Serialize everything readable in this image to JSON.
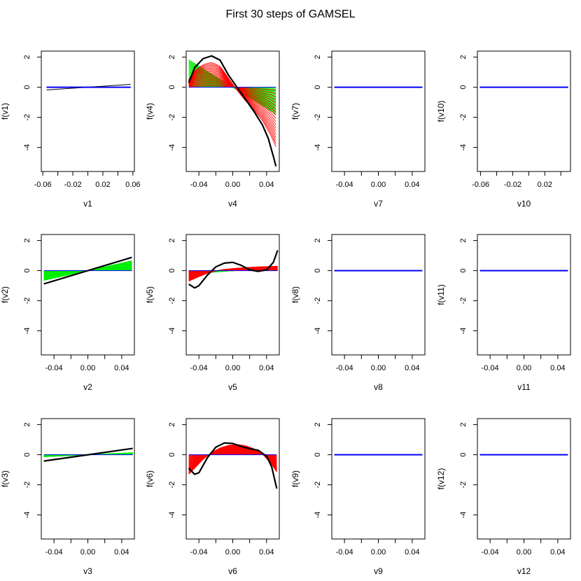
{
  "chart_data": {
    "type": "line",
    "title": "First 30 steps of GAMSEL",
    "steps": 30,
    "colors": {
      "truth": "#000000",
      "zero": "#0000ff",
      "linear": "#00ee00",
      "nonlinear": "#ff0000"
    },
    "ylim": [
      -5.6,
      2.4
    ],
    "yticks": [
      2,
      0,
      -2,
      -4
    ],
    "panels": [
      {
        "id": "v1",
        "xlabel": "v1",
        "ylabel": "f(v1)",
        "xlim": [
          -0.062,
          0.062
        ],
        "xticks": [
          -0.06,
          -0.04,
          -0.02,
          0.0,
          0.02,
          0.04,
          0.06
        ],
        "xtick_labels": [
          "-0.06",
          "-0.02",
          "0.02",
          "0.06"
        ],
        "xtick_label_values": [
          -0.06,
          -0.02,
          0.02,
          0.06
        ],
        "data_x": [
          -0.055,
          0.057
        ],
        "truth_points": [
          [
            -0.055,
            -0.18
          ],
          [
            0.057,
            0.19
          ]
        ],
        "linear_final_slope": 0,
        "nonlinear": null,
        "zero_only": true
      },
      {
        "id": "v4",
        "xlabel": "v4",
        "ylabel": "f(v4)",
        "xlim": [
          -0.055,
          0.055
        ],
        "xticks": [
          -0.04,
          -0.02,
          0.0,
          0.02,
          0.04
        ],
        "xtick_labels": [
          "-0.04",
          "0.00",
          "0.04"
        ],
        "xtick_label_values": [
          -0.04,
          0.0,
          0.04
        ],
        "data_x": [
          -0.052,
          0.051
        ],
        "truth_points": [
          [
            -0.052,
            0.3
          ],
          [
            -0.045,
            1.3
          ],
          [
            -0.035,
            1.9
          ],
          [
            -0.025,
            2.08
          ],
          [
            -0.015,
            1.8
          ],
          [
            -0.005,
            0.8
          ],
          [
            0.005,
            0.0
          ],
          [
            0.015,
            -0.8
          ],
          [
            0.025,
            -1.6
          ],
          [
            0.035,
            -2.5
          ],
          [
            0.042,
            -3.4
          ],
          [
            0.048,
            -4.6
          ],
          [
            0.051,
            -5.25
          ]
        ],
        "linear_final_slope": -35,
        "nonlinear": {
          "start_step": 12,
          "points": [
            [
              -0.052,
              0.5
            ],
            [
              -0.045,
              1.1
            ],
            [
              -0.035,
              1.5
            ],
            [
              -0.025,
              1.65
            ],
            [
              -0.015,
              1.4
            ],
            [
              -0.005,
              0.6
            ],
            [
              0.005,
              -0.2
            ],
            [
              0.015,
              -0.9
            ],
            [
              0.025,
              -1.5
            ],
            [
              0.035,
              -2.2
            ],
            [
              0.045,
              -3.2
            ],
            [
              0.051,
              -3.95
            ]
          ]
        },
        "zero_only": false
      },
      {
        "id": "v7",
        "xlabel": "v7",
        "ylabel": "f(v7)",
        "xlim": [
          -0.055,
          0.055
        ],
        "xticks": [
          -0.04,
          -0.02,
          0.0,
          0.02,
          0.04
        ],
        "xtick_labels": [
          "-0.04",
          "0.00",
          "0.04"
        ],
        "xtick_label_values": [
          -0.04,
          0.0,
          0.04
        ],
        "data_x": [
          -0.052,
          0.052
        ],
        "truth_points": [
          [
            -0.052,
            0
          ],
          [
            0.052,
            0
          ]
        ],
        "linear_final_slope": 0,
        "nonlinear": null,
        "zero_only": true
      },
      {
        "id": "v10",
        "xlabel": "v10",
        "ylabel": "f(v10)",
        "xlim": [
          -0.064,
          0.052
        ],
        "xticks": [
          -0.06,
          -0.04,
          -0.02,
          0.0,
          0.02,
          0.04
        ],
        "xtick_labels": [
          "-0.06",
          "-0.02",
          "0.02"
        ],
        "xtick_label_values": [
          -0.06,
          -0.02,
          0.02
        ],
        "data_x": [
          -0.061,
          0.049
        ],
        "truth_points": [
          [
            -0.061,
            0
          ],
          [
            0.049,
            0
          ]
        ],
        "linear_final_slope": 0,
        "nonlinear": null,
        "zero_only": true
      },
      {
        "id": "v2",
        "xlabel": "v2",
        "ylabel": "f(v2)",
        "xlim": [
          -0.055,
          0.055
        ],
        "xticks": [
          -0.04,
          -0.02,
          0.0,
          0.02,
          0.04
        ],
        "xtick_labels": [
          "-0.04",
          "0.00",
          "0.04"
        ],
        "xtick_label_values": [
          -0.04,
          0.0,
          0.04
        ],
        "data_x": [
          -0.052,
          0.052
        ],
        "truth_points": [
          [
            -0.052,
            -0.88
          ],
          [
            0.052,
            0.88
          ]
        ],
        "linear_final_slope": 12.5,
        "nonlinear": null,
        "zero_only": false
      },
      {
        "id": "v5",
        "xlabel": "v5",
        "ylabel": "f(v5)",
        "xlim": [
          -0.055,
          0.055
        ],
        "xticks": [
          -0.04,
          -0.02,
          0.0,
          0.02,
          0.04
        ],
        "xtick_labels": [
          "-0.04",
          "0.00",
          "0.04"
        ],
        "xtick_label_values": [
          -0.04,
          0.0,
          0.04
        ],
        "data_x": [
          -0.052,
          0.053
        ],
        "truth_points": [
          [
            -0.052,
            -0.9
          ],
          [
            -0.045,
            -1.15
          ],
          [
            -0.04,
            -1.0
          ],
          [
            -0.03,
            -0.3
          ],
          [
            -0.02,
            0.25
          ],
          [
            -0.01,
            0.5
          ],
          [
            0.0,
            0.55
          ],
          [
            0.01,
            0.35
          ],
          [
            0.02,
            0.05
          ],
          [
            0.03,
            -0.05
          ],
          [
            0.04,
            0.05
          ],
          [
            0.048,
            0.55
          ],
          [
            0.053,
            1.35
          ]
        ],
        "linear_final_slope": 4.5,
        "nonlinear": {
          "start_step": 8,
          "points": [
            [
              -0.052,
              -0.7
            ],
            [
              -0.04,
              -0.4
            ],
            [
              -0.03,
              -0.18
            ],
            [
              -0.02,
              -0.02
            ],
            [
              -0.01,
              0.08
            ],
            [
              0.0,
              0.14
            ],
            [
              0.01,
              0.18
            ],
            [
              0.02,
              0.22
            ],
            [
              0.03,
              0.25
            ],
            [
              0.04,
              0.27
            ],
            [
              0.053,
              0.3
            ]
          ]
        },
        "zero_only": false
      },
      {
        "id": "v8",
        "xlabel": "v8",
        "ylabel": "f(v8)",
        "xlim": [
          -0.055,
          0.055
        ],
        "xticks": [
          -0.04,
          -0.02,
          0.0,
          0.02,
          0.04
        ],
        "xtick_labels": [
          "-0.04",
          "0.00",
          "0.04"
        ],
        "xtick_label_values": [
          -0.04,
          0.0,
          0.04
        ],
        "data_x": [
          -0.052,
          0.052
        ],
        "truth_points": [
          [
            -0.052,
            0
          ],
          [
            0.052,
            0
          ]
        ],
        "linear_final_slope": 0,
        "nonlinear": null,
        "zero_only": true
      },
      {
        "id": "v11",
        "xlabel": "v11",
        "ylabel": "f(v11)",
        "xlim": [
          -0.055,
          0.055
        ],
        "xticks": [
          -0.04,
          -0.02,
          0.0,
          0.02,
          0.04
        ],
        "xtick_labels": [
          "-0.04",
          "0.00",
          "0.04"
        ],
        "xtick_label_values": [
          -0.04,
          0.0,
          0.04
        ],
        "data_x": [
          -0.052,
          0.052
        ],
        "truth_points": [
          [
            -0.052,
            0
          ],
          [
            0.052,
            0
          ]
        ],
        "linear_final_slope": 0,
        "nonlinear": null,
        "zero_only": true
      },
      {
        "id": "v3",
        "xlabel": "v3",
        "ylabel": "f(v3)",
        "xlim": [
          -0.055,
          0.055
        ],
        "xticks": [
          -0.04,
          -0.02,
          0.0,
          0.02,
          0.04
        ],
        "xtick_labels": [
          "-0.04",
          "0.00",
          "0.04"
        ],
        "xtick_label_values": [
          -0.04,
          0.0,
          0.04
        ],
        "data_x": [
          -0.052,
          0.053
        ],
        "truth_points": [
          [
            -0.052,
            -0.42
          ],
          [
            0.053,
            0.42
          ]
        ],
        "linear_final_slope": 2.6,
        "nonlinear": null,
        "zero_only": false
      },
      {
        "id": "v6",
        "xlabel": "v6",
        "ylabel": "f(v6)",
        "xlim": [
          -0.055,
          0.055
        ],
        "xticks": [
          -0.04,
          -0.02,
          0.0,
          0.02,
          0.04
        ],
        "xtick_labels": [
          "-0.04",
          "0.00",
          "0.04"
        ],
        "xtick_label_values": [
          -0.04,
          0.0,
          0.04
        ],
        "data_x": [
          -0.052,
          0.052
        ],
        "truth_points": [
          [
            -0.052,
            -0.9
          ],
          [
            -0.045,
            -1.3
          ],
          [
            -0.04,
            -1.2
          ],
          [
            -0.03,
            -0.2
          ],
          [
            -0.02,
            0.5
          ],
          [
            -0.01,
            0.78
          ],
          [
            0.0,
            0.75
          ],
          [
            0.01,
            0.55
          ],
          [
            0.02,
            0.4
          ],
          [
            0.03,
            0.3
          ],
          [
            0.04,
            -0.1
          ],
          [
            0.046,
            -0.8
          ],
          [
            0.052,
            -2.25
          ]
        ],
        "linear_final_slope": 0,
        "nonlinear": {
          "start_step": 2,
          "points": [
            [
              -0.052,
              -1.3
            ],
            [
              -0.045,
              -0.9
            ],
            [
              -0.035,
              -0.3
            ],
            [
              -0.025,
              0.15
            ],
            [
              -0.015,
              0.45
            ],
            [
              -0.005,
              0.62
            ],
            [
              0.005,
              0.68
            ],
            [
              0.015,
              0.6
            ],
            [
              0.025,
              0.4
            ],
            [
              0.035,
              0.05
            ],
            [
              0.045,
              -0.55
            ],
            [
              0.052,
              -1.15
            ]
          ]
        },
        "zero_only": false
      },
      {
        "id": "v9",
        "xlabel": "v9",
        "ylabel": "f(v9)",
        "xlim": [
          -0.055,
          0.055
        ],
        "xticks": [
          -0.04,
          -0.02,
          0.0,
          0.02,
          0.04
        ],
        "xtick_labels": [
          "-0.04",
          "0.00",
          "0.04"
        ],
        "xtick_label_values": [
          -0.04,
          0.0,
          0.04
        ],
        "data_x": [
          -0.052,
          0.052
        ],
        "truth_points": [
          [
            -0.052,
            0
          ],
          [
            0.052,
            0
          ]
        ],
        "linear_final_slope": 0,
        "nonlinear": null,
        "zero_only": true
      },
      {
        "id": "v12",
        "xlabel": "v12",
        "ylabel": "f(v12)",
        "xlim": [
          -0.055,
          0.055
        ],
        "xticks": [
          -0.04,
          -0.02,
          0.0,
          0.02,
          0.04
        ],
        "xtick_labels": [
          "-0.04",
          "0.00",
          "0.04"
        ],
        "xtick_label_values": [
          -0.04,
          0.0,
          0.04
        ],
        "data_x": [
          -0.052,
          0.052
        ],
        "truth_points": [
          [
            -0.052,
            0
          ],
          [
            0.052,
            0
          ]
        ],
        "linear_final_slope": 0,
        "nonlinear": null,
        "zero_only": true
      }
    ]
  }
}
